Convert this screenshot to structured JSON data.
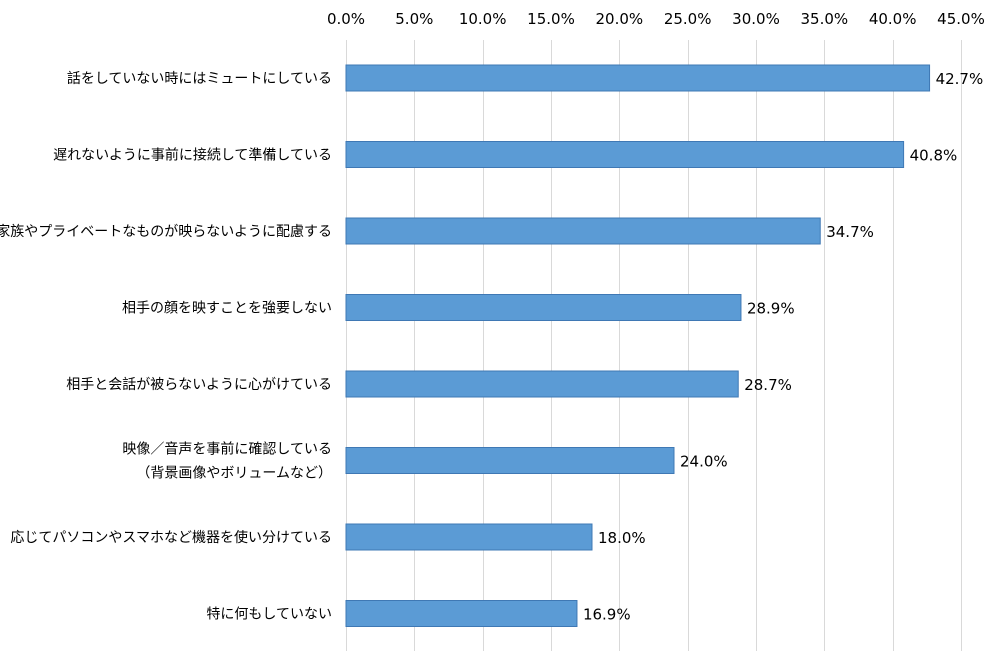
{
  "chart_data": {
    "type": "bar",
    "orientation": "horizontal",
    "categories": [
      [
        "話をしていない時にはミュートにしている"
      ],
      [
        "遅れないように事前に接続して準備している"
      ],
      [
        "家族やプライベートなものが映らないように配慮する"
      ],
      [
        "相手の顔を映すことを強要しない"
      ],
      [
        "相手と会話が被らないように心がけている"
      ],
      [
        "映像／音声を事前に確認している",
        "（背景画像やボリュームなど）"
      ],
      [
        "応じてパソコンやスマホなど機器を使い分けている"
      ],
      [
        "特に何もしていない"
      ]
    ],
    "values": [
      42.7,
      40.8,
      34.7,
      28.9,
      28.7,
      24.0,
      18.0,
      16.9
    ],
    "value_labels": [
      "42.7%",
      "40.8%",
      "34.7%",
      "28.9%",
      "28.7%",
      "24.0%",
      "18.0%",
      "16.9%"
    ],
    "x_ticks": [
      0,
      5,
      10,
      15,
      20,
      25,
      30,
      35,
      40,
      45
    ],
    "x_tick_labels": [
      "0.0%",
      "5.0%",
      "10.0%",
      "15.0%",
      "20.0%",
      "25.0%",
      "30.0%",
      "35.0%",
      "40.0%",
      "45.0%"
    ],
    "xlim": [
      0,
      45
    ],
    "axis_position": "top",
    "grid": true,
    "title": "",
    "xlabel": "",
    "ylabel": "",
    "colors": {
      "bar": "#5b9bd5",
      "bar_border": "#3f78b4",
      "grid": "#d9d9d9"
    }
  }
}
